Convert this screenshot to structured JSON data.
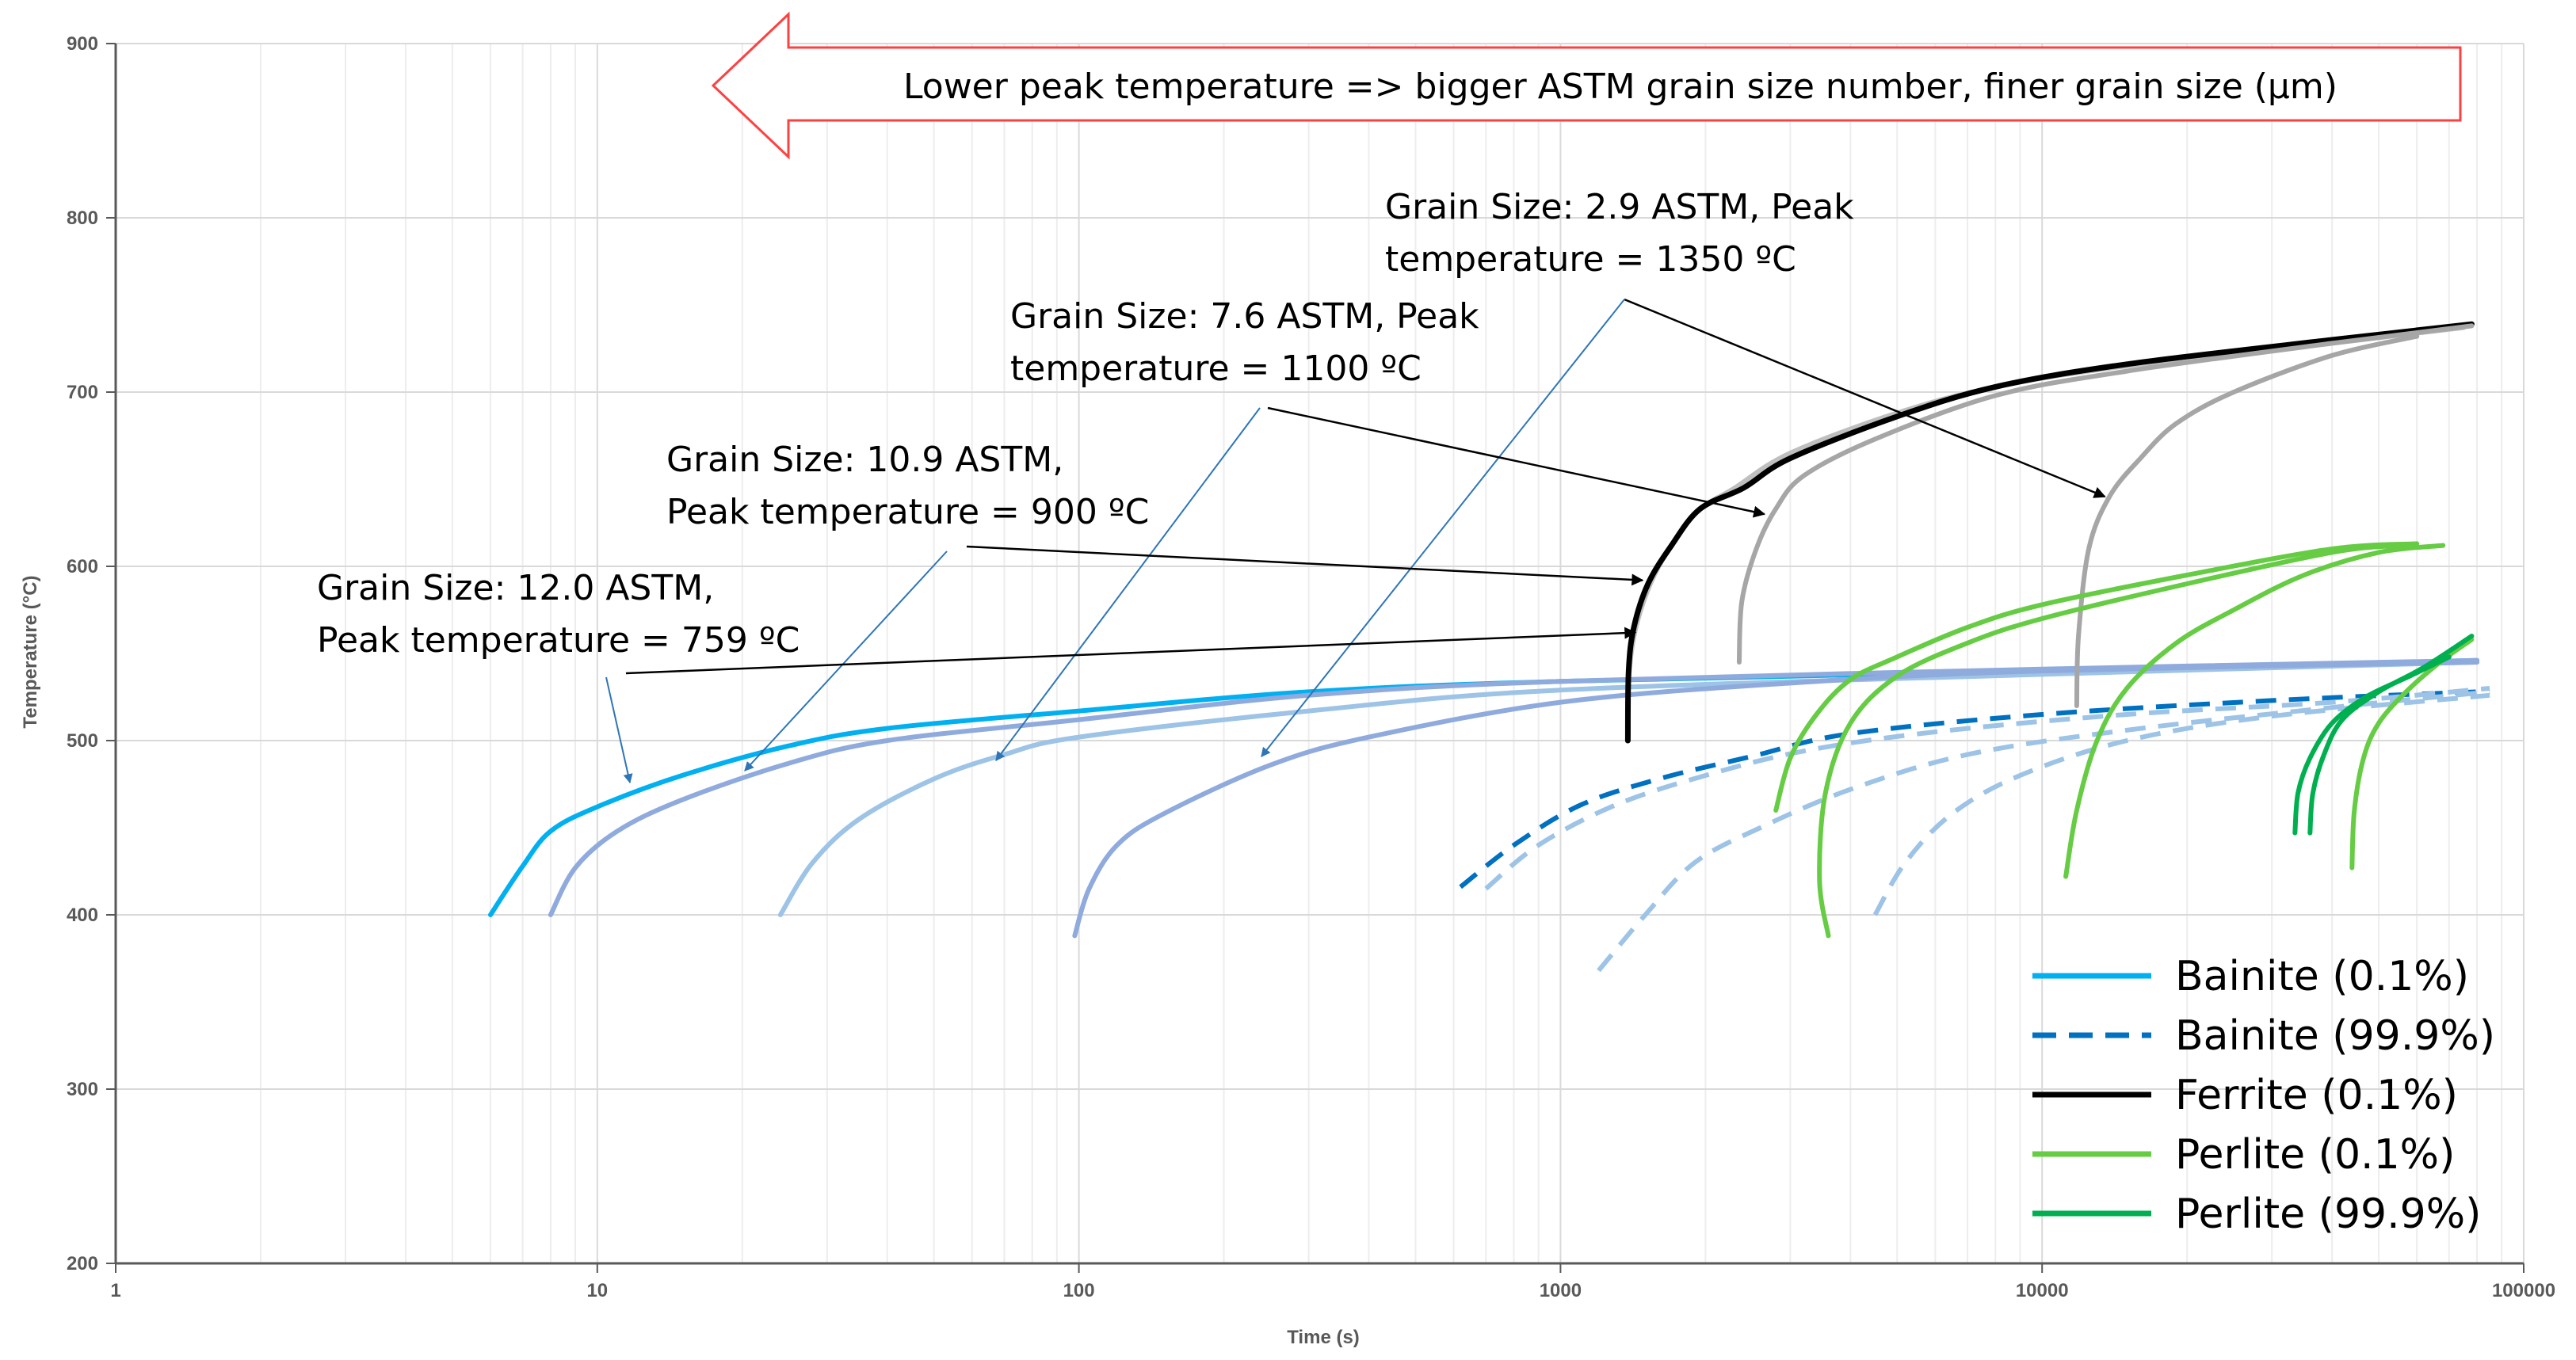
{
  "chart_data": {
    "type": "line",
    "title": "",
    "xlabel": "Time (s)",
    "ylabel": "Temperature (°C)",
    "x_scale": "log",
    "xlim": [
      1,
      100000
    ],
    "ylim": [
      200,
      900
    ],
    "x_ticks": [
      "1",
      "10",
      "100",
      "1000",
      "10000",
      "100000"
    ],
    "y_ticks": [
      "200",
      "300",
      "400",
      "500",
      "600",
      "700",
      "800",
      "900"
    ],
    "banner": "Lower peak temperature => bigger ASTM grain size number, finer grain size (μm)",
    "annotations": [
      {
        "id": "gs29",
        "lines": [
          "Grain Size: 2.9 ASTM, Peak",
          "temperature = 1350 ºC"
        ],
        "target": [
          13500,
          640
        ]
      },
      {
        "id": "gs76",
        "lines": [
          "Grain Size: 7.6 ASTM, Peak",
          "temperature = 1100 ºC"
        ],
        "target": [
          2650,
          630
        ]
      },
      {
        "id": "gs109",
        "lines": [
          "Grain Size: 10.9 ASTM,",
          "Peak temperature = 900 ºC"
        ],
        "target": [
          1480,
          592
        ]
      },
      {
        "id": "gs120",
        "lines": [
          "Grain Size: 12.0 ASTM,",
          "Peak temperature = 759 ºC"
        ],
        "target": [
          1430,
          562
        ]
      }
    ],
    "legend": [
      {
        "label": "Bainite (0.1%)",
        "color": "#00b0f0",
        "dash": "solid"
      },
      {
        "label": "Bainite (99.9%)",
        "color": "#0070c0",
        "dash": "dashed"
      },
      {
        "label": "Ferrite    (0.1%)",
        "color": "#000000",
        "dash": "solid"
      },
      {
        "label": "Perlite  (0.1%)",
        "color": "#66cc44",
        "dash": "solid"
      },
      {
        "label": "Perlite (99.9%)",
        "color": "#00b050",
        "dash": "solid"
      }
    ],
    "series": [
      {
        "name": "Bainite (0.1%) - 12.0 ASTM",
        "color": "#00b0f0",
        "dash": "solid",
        "width": 6,
        "points": [
          [
            6,
            400
          ],
          [
            7,
            428
          ],
          [
            8,
            448
          ],
          [
            10,
            462
          ],
          [
            15,
            480
          ],
          [
            25,
            497
          ],
          [
            40,
            507
          ],
          [
            100,
            517
          ],
          [
            300,
            528
          ],
          [
            1000,
            534
          ],
          [
            10000,
            540
          ],
          [
            80000,
            546
          ]
        ]
      },
      {
        "name": "Bainite (0.1%) - 10.9 ASTM",
        "color": "#8faadc",
        "dash": "solid",
        "width": 6,
        "points": [
          [
            8,
            400
          ],
          [
            9,
            427
          ],
          [
            11,
            448
          ],
          [
            15,
            466
          ],
          [
            25,
            487
          ],
          [
            40,
            500
          ],
          [
            100,
            512
          ],
          [
            300,
            526
          ],
          [
            1000,
            534
          ],
          [
            10000,
            541
          ],
          [
            80000,
            546
          ]
        ]
      },
      {
        "name": "Bainite (0.1%) - 7.6 ASTM",
        "color": "#9dc3e6",
        "dash": "solid",
        "width": 6,
        "points": [
          [
            24,
            400
          ],
          [
            28,
            430
          ],
          [
            35,
            455
          ],
          [
            50,
            478
          ],
          [
            70,
            492
          ],
          [
            100,
            502
          ],
          [
            300,
            517
          ],
          [
            1000,
            529
          ],
          [
            10000,
            538
          ],
          [
            80000,
            545
          ]
        ]
      },
      {
        "name": "Bainite (0.1%) - 2.9 ASTM",
        "color": "#8faadc",
        "dash": "solid",
        "width": 6,
        "points": [
          [
            98,
            388
          ],
          [
            105,
            415
          ],
          [
            120,
            440
          ],
          [
            150,
            458
          ],
          [
            250,
            486
          ],
          [
            400,
            502
          ],
          [
            1000,
            522
          ],
          [
            3000,
            533
          ],
          [
            10000,
            540
          ],
          [
            80000,
            545
          ]
        ]
      },
      {
        "name": "Bainite (99.9%) - 12.0 ASTM",
        "color": "#0070c0",
        "dash": "dashed",
        "width": 6,
        "points": [
          [
            620,
            416
          ],
          [
            800,
            440
          ],
          [
            1100,
            463
          ],
          [
            1600,
            478
          ],
          [
            2500,
            491
          ],
          [
            4000,
            504
          ],
          [
            10000,
            515
          ],
          [
            30000,
            523
          ],
          [
            80000,
            528
          ]
        ]
      },
      {
        "name": "Bainite (99.9%) - 10.9 ASTM",
        "color": "#9dc3e6",
        "dash": "dashed",
        "width": 6,
        "points": [
          [
            700,
            415
          ],
          [
            900,
            440
          ],
          [
            1300,
            463
          ],
          [
            2000,
            480
          ],
          [
            3200,
            494
          ],
          [
            6000,
            505
          ],
          [
            15000,
            515
          ],
          [
            40000,
            522
          ],
          [
            85000,
            530
          ]
        ]
      },
      {
        "name": "Bainite (99.9%) - 7.6 ASTM",
        "color": "#9dc3e6",
        "dash": "dashed",
        "width": 6,
        "points": [
          [
            1200,
            368
          ],
          [
            1500,
            400
          ],
          [
            1900,
            430
          ],
          [
            2600,
            450
          ],
          [
            4000,
            472
          ],
          [
            7000,
            492
          ],
          [
            15000,
            506
          ],
          [
            40000,
            519
          ],
          [
            85000,
            528
          ]
        ]
      },
      {
        "name": "Bainite (99.9%) - 2.9 ASTM",
        "color": "#9dc3e6",
        "dash": "dashed",
        "width": 6,
        "points": [
          [
            4500,
            400
          ],
          [
            5200,
            430
          ],
          [
            6500,
            458
          ],
          [
            9000,
            480
          ],
          [
            15000,
            500
          ],
          [
            30000,
            514
          ],
          [
            85000,
            526
          ]
        ]
      },
      {
        "name": "Ferrite (0.1%) - 12.0 ASTM",
        "color": "#bfbfbf",
        "dash": "solid",
        "width": 6,
        "points": [
          [
            1380,
            500
          ],
          [
            1390,
            540
          ],
          [
            1450,
            570
          ],
          [
            1600,
            600
          ],
          [
            1900,
            630
          ],
          [
            2300,
            645
          ],
          [
            3000,
            665
          ],
          [
            5000,
            688
          ],
          [
            8000,
            703
          ],
          [
            15000,
            715
          ],
          [
            40000,
            728
          ],
          [
            75000,
            737
          ]
        ]
      },
      {
        "name": "Ferrite (0.1%) - 10.9 ASTM",
        "color": "#000000",
        "dash": "solid",
        "width": 7,
        "points": [
          [
            1380,
            500
          ],
          [
            1385,
            540
          ],
          [
            1420,
            565
          ],
          [
            1520,
            590
          ],
          [
            1700,
            612
          ],
          [
            1950,
            633
          ],
          [
            2400,
            645
          ],
          [
            3000,
            662
          ],
          [
            5000,
            686
          ],
          [
            8000,
            703
          ],
          [
            15000,
            716
          ],
          [
            40000,
            730
          ],
          [
            78000,
            739
          ]
        ]
      },
      {
        "name": "Ferrite (0.1%) - 7.6 ASTM",
        "color": "#a6a6a6",
        "dash": "solid",
        "width": 6,
        "points": [
          [
            2350,
            545
          ],
          [
            2380,
            580
          ],
          [
            2550,
            610
          ],
          [
            2800,
            633
          ],
          [
            3200,
            652
          ],
          [
            4500,
            673
          ],
          [
            8000,
            698
          ],
          [
            15000,
            712
          ],
          [
            40000,
            728
          ],
          [
            78000,
            738
          ]
        ]
      },
      {
        "name": "Ferrite (0.1%) - 2.9 ASTM",
        "color": "#a6a6a6",
        "dash": "solid",
        "width": 6,
        "points": [
          [
            11800,
            520
          ],
          [
            11900,
            560
          ],
          [
            12500,
            610
          ],
          [
            13800,
            640
          ],
          [
            16000,
            662
          ],
          [
            19000,
            682
          ],
          [
            25000,
            700
          ],
          [
            40000,
            721
          ],
          [
            60000,
            732
          ]
        ]
      },
      {
        "name": "Perlite (0.1%) - 12.0 ASTM",
        "color": "#66cc44",
        "dash": "solid",
        "width": 6,
        "points": [
          [
            2800,
            460
          ],
          [
            3000,
            490
          ],
          [
            3400,
            515
          ],
          [
            4000,
            535
          ],
          [
            5000,
            548
          ],
          [
            7000,
            565
          ],
          [
            10000,
            578
          ],
          [
            20000,
            595
          ],
          [
            40000,
            610
          ],
          [
            60000,
            613
          ]
        ]
      },
      {
        "name": "Perlite (0.1%) - 10.9 ASTM",
        "color": "#66cc44",
        "dash": "solid",
        "width": 6,
        "points": [
          [
            3600,
            388
          ],
          [
            3450,
            420
          ],
          [
            3550,
            470
          ],
          [
            4000,
            510
          ],
          [
            5000,
            537
          ],
          [
            7000,
            556
          ],
          [
            10000,
            570
          ],
          [
            20000,
            590
          ],
          [
            40000,
            608
          ],
          [
            55000,
            612
          ]
        ]
      },
      {
        "name": "Perlite (0.1%) - 7.6 ASTM",
        "color": "#66cc44",
        "dash": "solid",
        "width": 6,
        "points": [
          [
            11200,
            422
          ],
          [
            11800,
            460
          ],
          [
            13000,
            500
          ],
          [
            15000,
            530
          ],
          [
            19000,
            556
          ],
          [
            25000,
            575
          ],
          [
            35000,
            595
          ],
          [
            50000,
            608
          ],
          [
            68000,
            612
          ]
        ]
      },
      {
        "name": "Perlite (0.1%) - 2.9 ASTM",
        "color": "#66cc44",
        "dash": "solid",
        "width": 6,
        "points": [
          [
            44000,
            427
          ],
          [
            44500,
            460
          ],
          [
            46500,
            490
          ],
          [
            50000,
            510
          ],
          [
            57000,
            528
          ],
          [
            67000,
            545
          ],
          [
            78000,
            558
          ]
        ]
      },
      {
        "name": "Perlite (99.9%) - A",
        "color": "#00b050",
        "dash": "solid",
        "width": 6,
        "points": [
          [
            33500,
            447
          ],
          [
            34000,
            470
          ],
          [
            36000,
            490
          ],
          [
            40000,
            510
          ],
          [
            47000,
            525
          ],
          [
            58000,
            537
          ],
          [
            70000,
            548
          ]
        ]
      },
      {
        "name": "Perlite (99.9%) - B",
        "color": "#00b050",
        "dash": "solid",
        "width": 6,
        "points": [
          [
            36000,
            447
          ],
          [
            36500,
            470
          ],
          [
            38500,
            492
          ],
          [
            42000,
            512
          ],
          [
            50000,
            528
          ],
          [
            62000,
            542
          ],
          [
            78000,
            560
          ]
        ]
      }
    ]
  }
}
